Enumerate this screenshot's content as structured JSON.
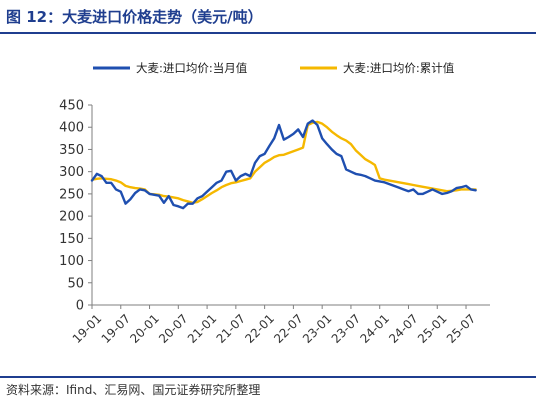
{
  "header": {
    "title": "图 12：大麦进口价格走势（美元/吨）"
  },
  "footer": {
    "source": "资料来源：Ifind、汇易网、国元证券研究所整理"
  },
  "colors": {
    "monthly": "#1f4fb0",
    "cumulative": "#f5b800",
    "border": "#1f3e8f"
  },
  "chart_data": {
    "type": "line",
    "title": "",
    "xlabel": "",
    "ylabel": "",
    "ylim": [
      0,
      450
    ],
    "yticks": [
      0,
      50,
      100,
      150,
      200,
      250,
      300,
      350,
      400,
      450
    ],
    "xticks": [
      "19-01",
      "19-07",
      "20-01",
      "20-07",
      "21-01",
      "21-07",
      "22-01",
      "22-07",
      "23-01",
      "23-07",
      "24-01",
      "24-07",
      "25-01",
      "25-07"
    ],
    "legend_position": "top",
    "grid": false,
    "x": [
      "19-01",
      "19-02",
      "19-03",
      "19-04",
      "19-05",
      "19-06",
      "19-07",
      "19-08",
      "19-09",
      "19-10",
      "19-11",
      "19-12",
      "20-01",
      "20-02",
      "20-03",
      "20-04",
      "20-05",
      "20-06",
      "20-07",
      "20-08",
      "20-09",
      "20-10",
      "20-11",
      "20-12",
      "21-01",
      "21-02",
      "21-03",
      "21-04",
      "21-05",
      "21-06",
      "21-07",
      "21-08",
      "21-09",
      "21-10",
      "21-11",
      "21-12",
      "22-01",
      "22-02",
      "22-03",
      "22-04",
      "22-05",
      "22-06",
      "22-07",
      "22-08",
      "22-09",
      "22-10",
      "22-11",
      "22-12",
      "23-01",
      "23-02",
      "23-03",
      "23-04",
      "23-05",
      "23-06",
      "23-07",
      "23-08",
      "23-09",
      "23-10",
      "23-11",
      "23-12",
      "24-01",
      "24-02",
      "24-03",
      "24-04",
      "24-05",
      "24-06",
      "24-07",
      "24-08",
      "24-09",
      "24-10",
      "24-11",
      "24-12",
      "25-01",
      "25-02",
      "25-03",
      "25-04",
      "25-05",
      "25-06",
      "25-07",
      "25-08",
      "25-09"
    ],
    "series": [
      {
        "name": "大麦:进口均价:当月值",
        "color": "#1f4fb0",
        "values": [
          280,
          295,
          290,
          275,
          275,
          260,
          255,
          228,
          238,
          252,
          260,
          258,
          250,
          248,
          246,
          230,
          245,
          225,
          222,
          218,
          228,
          228,
          240,
          245,
          255,
          265,
          275,
          280,
          300,
          302,
          280,
          290,
          295,
          290,
          320,
          335,
          340,
          358,
          375,
          405,
          372,
          378,
          385,
          395,
          378,
          408,
          415,
          405,
          375,
          362,
          350,
          340,
          335,
          305,
          300,
          295,
          293,
          290,
          285,
          280,
          278,
          276,
          272,
          268,
          264,
          260,
          256,
          260,
          250,
          250,
          255,
          260,
          255,
          250,
          252,
          256,
          263,
          265,
          268,
          260,
          258
        ]
      },
      {
        "name": "大麦:进口均价:累计值",
        "color": "#f5b800",
        "values": [
          282,
          284,
          285,
          284,
          283,
          280,
          276,
          268,
          265,
          263,
          262,
          260,
          250,
          249,
          248,
          245,
          244,
          242,
          240,
          236,
          233,
          230,
          232,
          238,
          245,
          252,
          258,
          265,
          270,
          274,
          276,
          279,
          282,
          285,
          300,
          310,
          320,
          326,
          333,
          337,
          338,
          342,
          346,
          350,
          354,
          405,
          410,
          412,
          408,
          400,
          390,
          382,
          375,
          370,
          362,
          348,
          338,
          328,
          322,
          315,
          285,
          282,
          280,
          278,
          276,
          274,
          272,
          270,
          268,
          266,
          264,
          262,
          260,
          258,
          256,
          257,
          258,
          260,
          260,
          260,
          260
        ]
      }
    ]
  }
}
